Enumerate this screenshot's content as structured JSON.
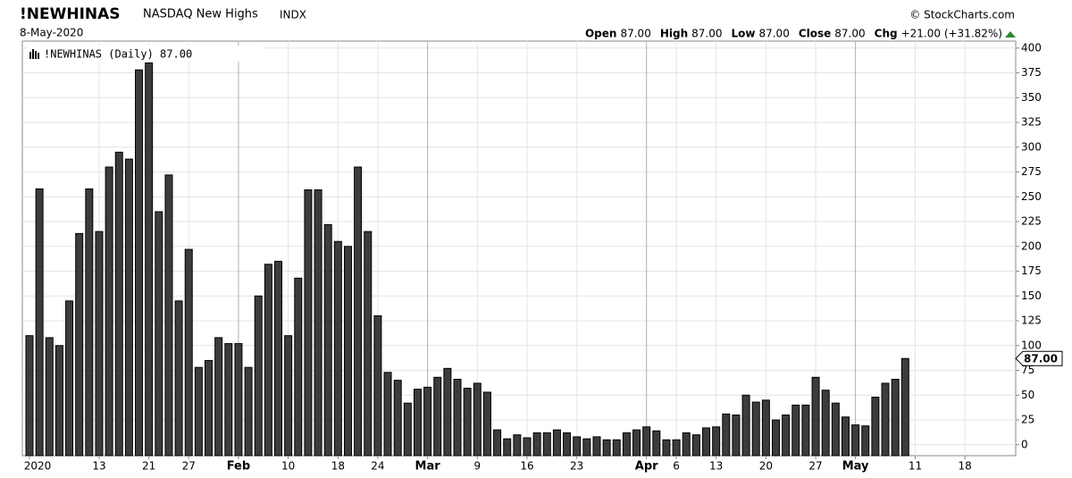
{
  "chart_data": {
    "type": "bar",
    "symbol": "!NEWHINAS",
    "title": "NASDAQ New Highs",
    "exchange": "INDX",
    "date": "8-May-2020",
    "source": "© StockCharts.com",
    "quote": [
      {
        "label": "Open",
        "value": "87.00"
      },
      {
        "label": "High",
        "value": "87.00"
      },
      {
        "label": "Low",
        "value": "87.00"
      },
      {
        "label": "Close",
        "value": "87.00"
      },
      {
        "label": "Chg",
        "value": "+21.00 (+31.82%)"
      }
    ],
    "legend": "!NEWHINAS (Daily) 87.00",
    "last_label": "87.00",
    "color": "#3c3c3c",
    "categories": [
      "2020",
      null,
      null,
      null,
      null,
      null,
      null,
      "13",
      null,
      null,
      null,
      null,
      "21",
      null,
      null,
      null,
      "27",
      null,
      null,
      null,
      null,
      "Feb",
      null,
      null,
      null,
      null,
      "10",
      null,
      null,
      null,
      null,
      "18",
      null,
      null,
      null,
      "24",
      null,
      null,
      null,
      null,
      "Mar",
      null,
      null,
      null,
      null,
      "9",
      null,
      null,
      null,
      null,
      "16",
      null,
      null,
      null,
      null,
      "23",
      null,
      null,
      null,
      null,
      null,
      null,
      "Apr",
      null,
      null,
      "6",
      null,
      null,
      null,
      "13",
      null,
      null,
      null,
      null,
      "20",
      null,
      null,
      null,
      null,
      "27",
      null,
      null,
      null,
      "May",
      null,
      null,
      null,
      null,
      null,
      "11",
      null,
      null,
      null,
      null,
      "18",
      null,
      null,
      null,
      null
    ],
    "values": [
      110,
      258,
      108,
      100,
      145,
      213,
      258,
      215,
      280,
      295,
      288,
      378,
      385,
      235,
      272,
      145,
      197,
      78,
      85,
      108,
      102,
      102,
      78,
      150,
      182,
      185,
      110,
      168,
      257,
      257,
      222,
      205,
      200,
      280,
      215,
      130,
      73,
      65,
      42,
      56,
      58,
      68,
      77,
      66,
      57,
      62,
      53,
      15,
      6,
      10,
      7,
      12,
      12,
      15,
      12,
      8,
      6,
      8,
      5,
      5,
      12,
      15,
      18,
      14,
      5,
      5,
      12,
      10,
      17,
      18,
      31,
      30,
      50,
      43,
      45,
      25,
      30,
      40,
      40,
      68,
      55,
      42,
      28,
      20,
      19,
      48,
      62,
      66,
      87,
      null,
      null,
      null,
      null,
      null,
      null,
      null,
      null,
      null,
      null
    ],
    "ylim": [
      -11,
      407
    ],
    "yticks": [
      0,
      25,
      50,
      75,
      100,
      125,
      150,
      175,
      200,
      225,
      250,
      275,
      300,
      325,
      350,
      375,
      400
    ],
    "grid": true
  }
}
